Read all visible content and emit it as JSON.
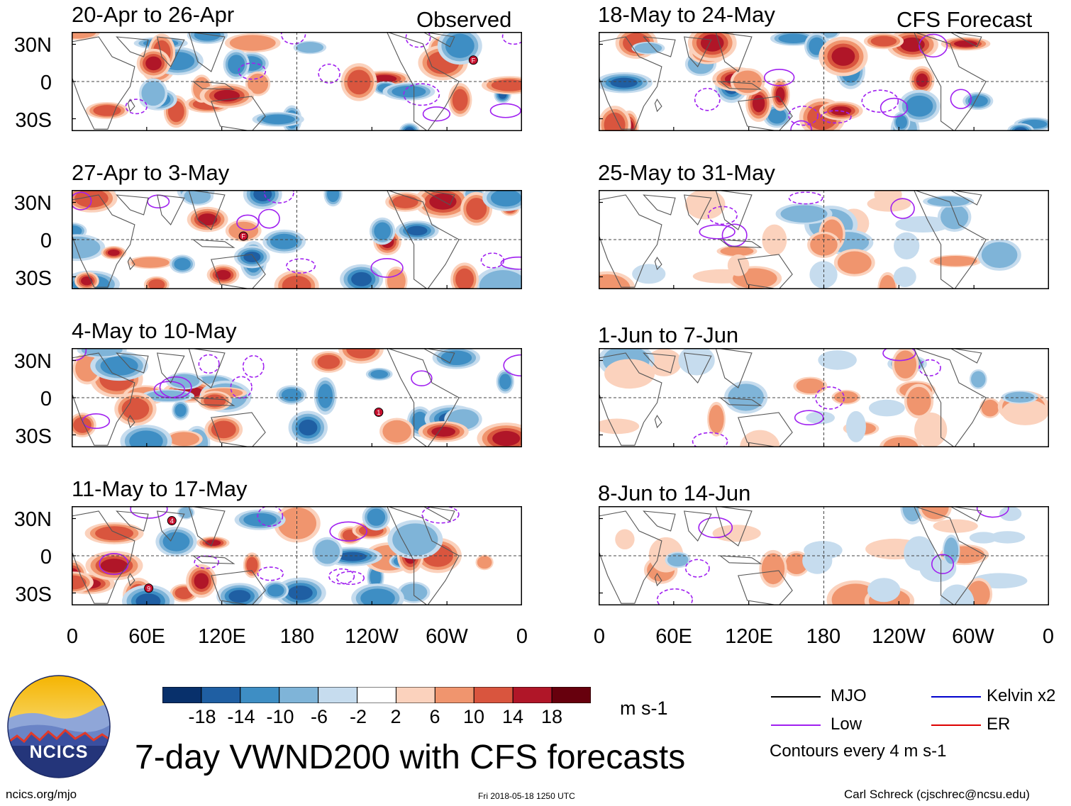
{
  "header": {
    "left_label": "Observed",
    "right_label": "CFS Forecast"
  },
  "panels": {
    "observed": [
      {
        "title": "20-Apr to 26-Apr"
      },
      {
        "title": "27-Apr to 3-May"
      },
      {
        "title": "4-May to 10-May"
      },
      {
        "title": "11-May to 17-May"
      }
    ],
    "forecast": [
      {
        "title": "18-May to 24-May"
      },
      {
        "title": "25-May to 31-May"
      },
      {
        "title": "1-Jun to 7-Jun"
      },
      {
        "title": "8-Jun to 14-Jun"
      }
    ]
  },
  "axes": {
    "y_labels": [
      "30N",
      "0",
      "30S"
    ],
    "x_labels": [
      "0",
      "60E",
      "120E",
      "180",
      "120W",
      "60W",
      "0"
    ]
  },
  "colorbar": {
    "ticks": [
      "-18",
      "-14",
      "-10",
      "-6",
      "-2",
      "2",
      "6",
      "10",
      "14",
      "18"
    ],
    "units": "m s-1",
    "colors": [
      "#08306b",
      "#1f5fa3",
      "#3e8ec4",
      "#7fb4d8",
      "#c6dcee",
      "#ffffff",
      "#fbd2bd",
      "#f0956e",
      "#d9553e",
      "#b01628",
      "#67000d"
    ]
  },
  "legend": {
    "mjo": "MJO",
    "low": "Low",
    "kelvin": "Kelvin x2",
    "er": "ER",
    "contours": "Contours every 4 m s-1",
    "colors": {
      "mjo": "#000000",
      "low": "#a020f0",
      "kelvin": "#0000cd",
      "er": "#dd0000"
    }
  },
  "footer": {
    "title": "7-day VWND200 with CFS forecasts",
    "url": "ncics.org/mjo",
    "timestamp": "Fri 2018-05-18 1250 UTC",
    "author": "Carl Schreck (cjschrec@ncsu.edu)",
    "logo_text": "NCICS"
  },
  "storms": {
    "observed": [
      [
        "F"
      ],
      [
        "F"
      ],
      [
        "1"
      ],
      [
        "9",
        "4"
      ]
    ]
  },
  "palette": {
    "neg": "#3a7fc0",
    "neg_dark": "#0b3e7e",
    "pos": "#e0604a",
    "pos_dark": "#8a0a1c",
    "land_line": "#555555"
  }
}
